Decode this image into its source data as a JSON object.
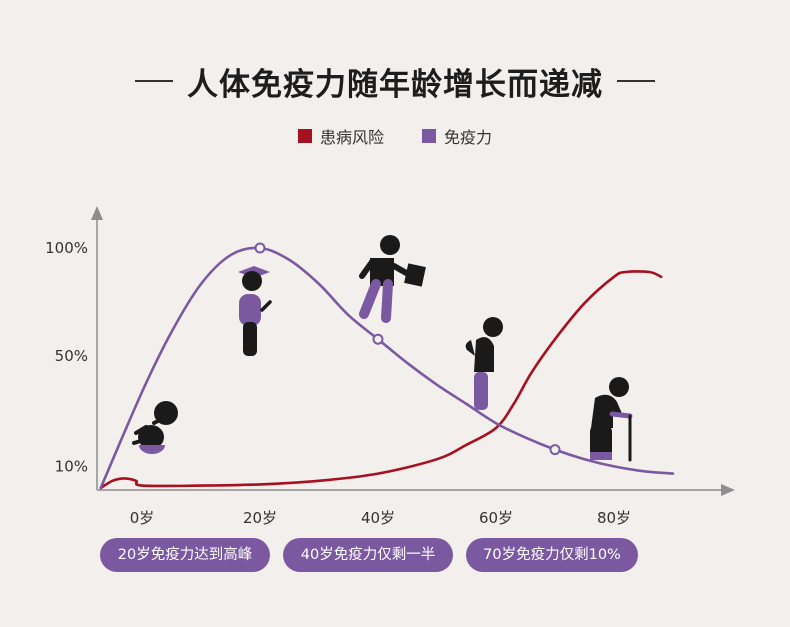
{
  "title": "人体免疫力随年龄增长而递减",
  "legend": [
    {
      "label": "患病风险",
      "color": "#a5111f"
    },
    {
      "label": "免疫力",
      "color": "#7b59a0"
    }
  ],
  "chart_data": {
    "type": "line",
    "title": "人体免疫力随年龄增长而递减",
    "x_ticks": [
      "0岁",
      "20岁",
      "40岁",
      "60岁",
      "80岁"
    ],
    "y_ticks": [
      "100%",
      "50%",
      "10%"
    ],
    "series": [
      {
        "name": "免疫力",
        "color": "#7b59a0",
        "points": [
          [
            -7,
            0
          ],
          [
            0,
            40
          ],
          [
            5,
            65
          ],
          [
            10,
            85
          ],
          [
            15,
            97
          ],
          [
            20,
            100
          ],
          [
            25,
            95
          ],
          [
            30,
            85
          ],
          [
            35,
            72
          ],
          [
            40,
            62
          ],
          [
            45,
            52
          ],
          [
            50,
            43
          ],
          [
            55,
            35
          ],
          [
            60,
            27
          ],
          [
            65,
            21
          ],
          [
            70,
            16
          ],
          [
            75,
            12
          ],
          [
            80,
            9
          ],
          [
            85,
            7
          ],
          [
            90,
            6
          ]
        ],
        "markers": [
          [
            20,
            100
          ],
          [
            40,
            62
          ],
          [
            70,
            16
          ]
        ]
      },
      {
        "name": "患病风险",
        "color": "#a5111f",
        "points": [
          [
            -7,
            0
          ],
          [
            -5,
            3
          ],
          [
            -3,
            4
          ],
          [
            -1,
            3
          ],
          [
            0,
            1
          ],
          [
            10,
            1
          ],
          [
            20,
            1.5
          ],
          [
            30,
            3
          ],
          [
            40,
            6
          ],
          [
            50,
            12
          ],
          [
            55,
            18
          ],
          [
            60,
            25
          ],
          [
            63,
            35
          ],
          [
            66,
            48
          ],
          [
            70,
            62
          ],
          [
            75,
            77
          ],
          [
            80,
            88
          ],
          [
            82,
            90
          ],
          [
            86,
            90
          ],
          [
            88,
            88
          ]
        ]
      }
    ],
    "annotations": [
      {
        "label": "20岁免疫力达到高峰"
      },
      {
        "label": "40岁免疫力仅剩一半"
      },
      {
        "label": "70岁免疫力仅剩10%"
      }
    ]
  },
  "icons": [
    "baby-icon",
    "graduate-icon",
    "adult-running-icon",
    "hunched-senior-icon",
    "elderly-cane-icon"
  ]
}
